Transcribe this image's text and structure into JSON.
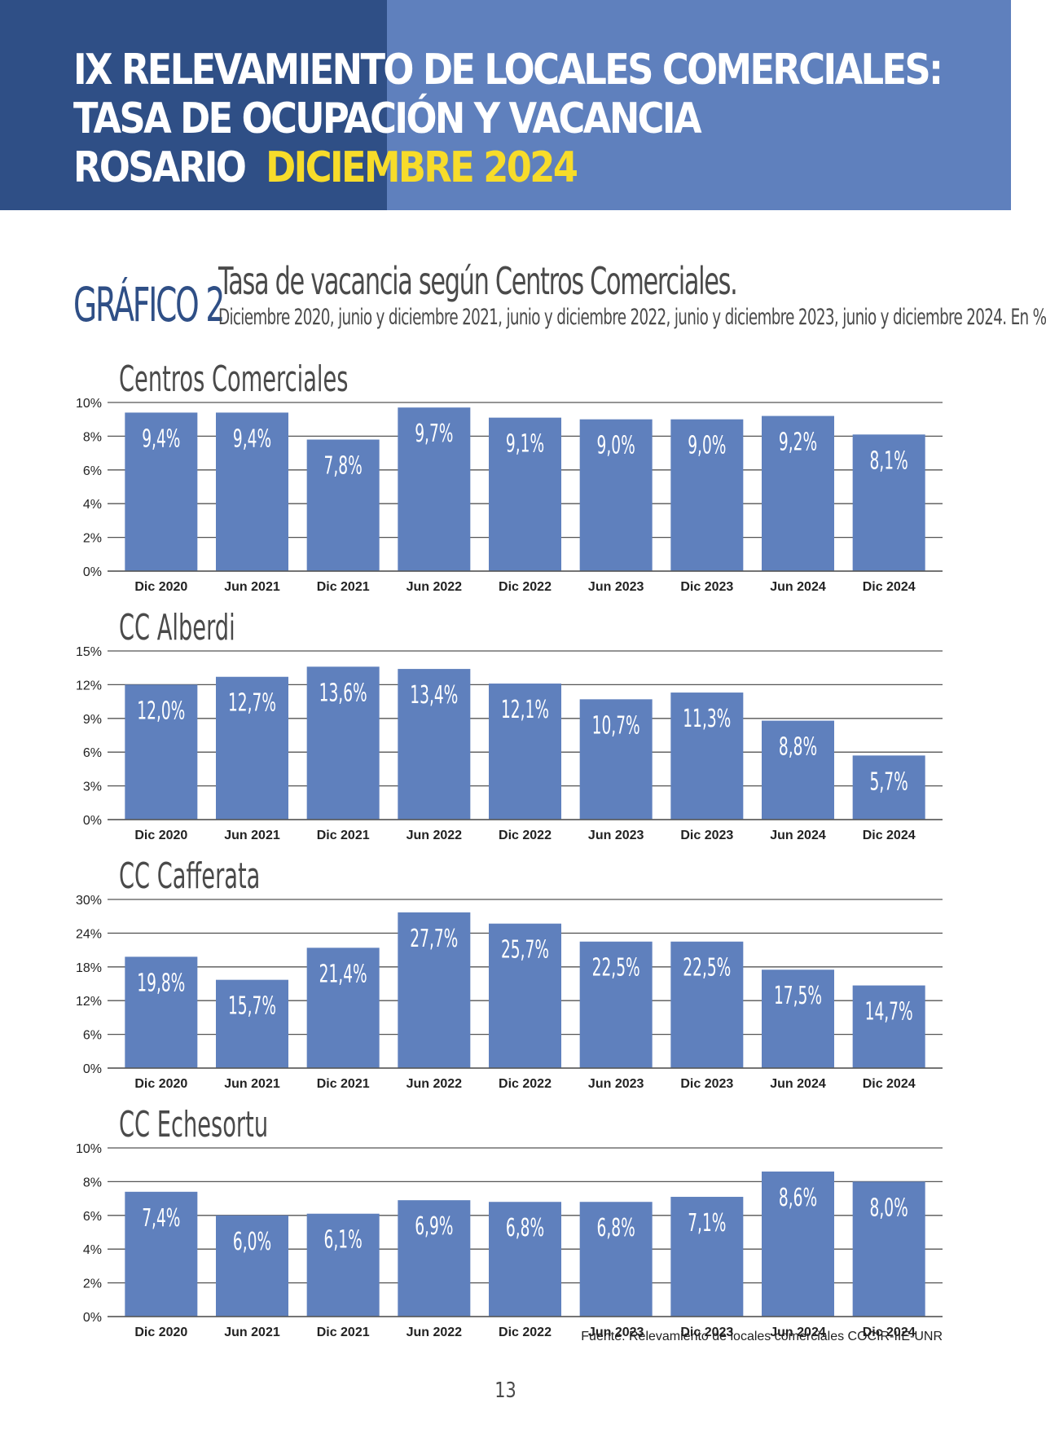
{
  "header": {
    "line1": "IX RELEVAMIENTO DE LOCALES COMERCIALES:",
    "line2": "TASA DE OCUPACIÓN Y VACANCIA",
    "line3_city": "ROSARIO",
    "line3_date": "DICIEMBRE 2024"
  },
  "figure": {
    "label": "GRÁFICO 2",
    "title": "Tasa de vacancia según Centros Comerciales.",
    "subtitle": "Diciembre 2020, junio y diciembre 2021, junio y diciembre 2022, junio y diciembre 2023, junio y diciembre 2024. En %"
  },
  "colors": {
    "bar": "#5f80bd",
    "header_dark": "#2f4f86",
    "header_light": "#5f80bd",
    "accent": "#f7dc2a"
  },
  "chart_data": [
    {
      "type": "bar",
      "title": "Centros Comerciales",
      "categories": [
        "Dic 2020",
        "Jun 2021",
        "Dic 2021",
        "Jun 2022",
        "Dic 2022",
        "Jun 2023",
        "Dic 2023",
        "Jun 2024",
        "Dic 2024"
      ],
      "values": [
        9.4,
        9.4,
        7.8,
        9.7,
        9.1,
        9.0,
        9.0,
        9.2,
        8.1
      ],
      "value_labels": [
        "9,4%",
        "9,4%",
        "7,8%",
        "9,7%",
        "9,1%",
        "9,0%",
        "9,0%",
        "9,2%",
        "8,1%"
      ],
      "yticks": [
        0,
        2,
        4,
        6,
        8,
        10
      ],
      "ytick_labels": [
        "0%",
        "2%",
        "4%",
        "6%",
        "8%",
        "10%"
      ],
      "ylim": [
        0,
        10
      ],
      "grid": true
    },
    {
      "type": "bar",
      "title": "CC Alberdi",
      "categories": [
        "Dic 2020",
        "Jun 2021",
        "Dic 2021",
        "Jun 2022",
        "Dic 2022",
        "Jun 2023",
        "Dic 2023",
        "Jun 2024",
        "Dic 2024"
      ],
      "values": [
        12.0,
        12.7,
        13.6,
        13.4,
        12.1,
        10.7,
        11.3,
        8.8,
        5.7
      ],
      "value_labels": [
        "12,0%",
        "12,7%",
        "13,6%",
        "13,4%",
        "12,1%",
        "10,7%",
        "11,3%",
        "8,8%",
        "5,7%"
      ],
      "yticks": [
        0,
        3,
        6,
        9,
        12,
        15
      ],
      "ytick_labels": [
        "0%",
        "3%",
        "6%",
        "9%",
        "12%",
        "15%"
      ],
      "ylim": [
        0,
        15
      ],
      "grid": true
    },
    {
      "type": "bar",
      "title": "CC Cafferata",
      "categories": [
        "Dic 2020",
        "Jun 2021",
        "Dic 2021",
        "Jun 2022",
        "Dic 2022",
        "Jun 2023",
        "Dic 2023",
        "Jun 2024",
        "Dic 2024"
      ],
      "values": [
        19.8,
        15.7,
        21.4,
        27.7,
        25.7,
        22.5,
        22.5,
        17.5,
        14.7
      ],
      "value_labels": [
        "19,8%",
        "15,7%",
        "21,4%",
        "27,7%",
        "25,7%",
        "22,5%",
        "22,5%",
        "17,5%",
        "14,7%"
      ],
      "yticks": [
        0,
        6,
        12,
        18,
        24,
        30
      ],
      "ytick_labels": [
        "0%",
        "6%",
        "12%",
        "18%",
        "24%",
        "30%"
      ],
      "ylim": [
        0,
        30
      ],
      "grid": true
    },
    {
      "type": "bar",
      "title": "CC Echesortu",
      "categories": [
        "Dic 2020",
        "Jun 2021",
        "Dic 2021",
        "Jun 2022",
        "Dic 2022",
        "Jun 2023",
        "Dic 2023",
        "Jun 2024",
        "Dic 2024"
      ],
      "values": [
        7.4,
        6.0,
        6.1,
        6.9,
        6.8,
        6.8,
        7.1,
        8.6,
        8.0
      ],
      "value_labels": [
        "7,4%",
        "6,0%",
        "6,1%",
        "6,9%",
        "6,8%",
        "6,8%",
        "7,1%",
        "8,6%",
        "8,0%"
      ],
      "yticks": [
        0,
        2,
        4,
        6,
        8,
        10
      ],
      "ytick_labels": [
        "0%",
        "2%",
        "4%",
        "6%",
        "8%",
        "10%"
      ],
      "ylim": [
        0,
        10
      ],
      "grid": true
    }
  ],
  "source": "Fuente: Relevamiento de locales comerciales COCIR-IIE-UNR",
  "page_number": "13"
}
